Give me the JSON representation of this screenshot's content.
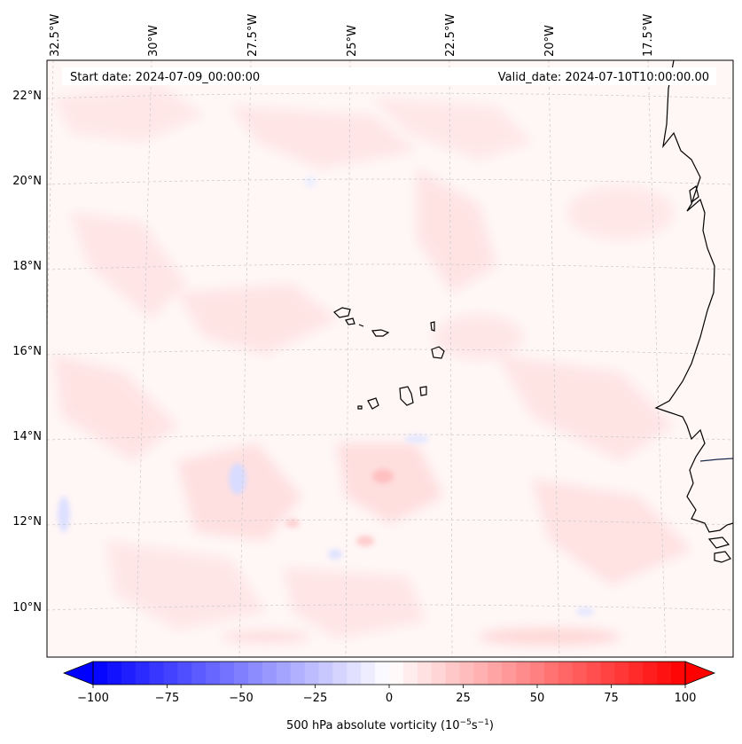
{
  "header": {
    "start_date": "Start date: 2024-07-09_00:00:00",
    "valid_date": "Valid_date: 2024-07-10T10:00:00.00"
  },
  "longitude_labels": [
    "32.5°W",
    "30°W",
    "27.5°W",
    "25°W",
    "22.5°W",
    "20°W",
    "17.5°W"
  ],
  "latitude_labels": [
    "22°N",
    "20°N",
    "18°N",
    "16°N",
    "14°N",
    "12°N",
    "10°N"
  ],
  "colorbar": {
    "title": "500 hPa absolute vorticity (10",
    "title_sup1": "−5",
    "title_mid": "s",
    "title_sup2": "−1",
    "title_end": ")",
    "ticks": [
      "−100",
      "−75",
      "−50",
      "−25",
      "0",
      "25",
      "50",
      "75",
      "100"
    ],
    "tick_values": [
      -100,
      -75,
      -50,
      -25,
      0,
      25,
      50,
      75,
      100
    ],
    "range": [
      -100,
      100
    ],
    "levels": 42,
    "color_low": "#0000ff",
    "color_mid": "#ffffff",
    "color_high": "#ff0000"
  },
  "colors": {
    "background_field": "#fff6f6",
    "grid": "#c8c8c8",
    "coast": "#000000"
  }
}
